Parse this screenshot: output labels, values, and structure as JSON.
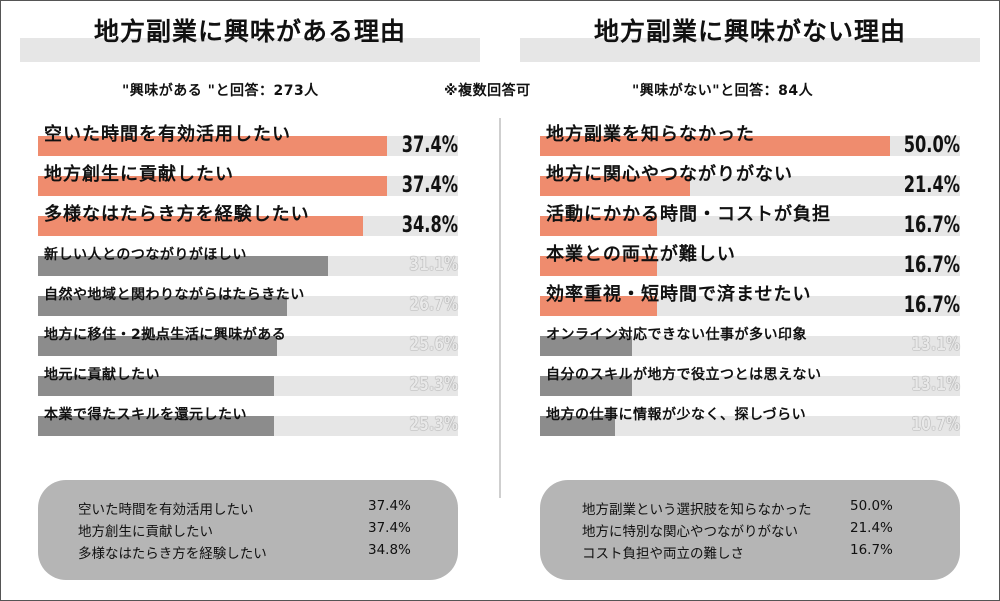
{
  "note": "※複数回答可",
  "colors": {
    "highlight": "#ef8c6e",
    "normal": "#8c8c8c",
    "track": "#e6e6e6",
    "pct_highlight": "#111111",
    "pct_normal": "#e9e9e9"
  },
  "chart_data": [
    {
      "type": "bar",
      "orientation": "horizontal",
      "title": "地方副業に興味がある理由",
      "respondents": "\"興味がある \"と回答：273人",
      "unit": "%",
      "xlim": [
        0,
        45
      ],
      "categories": [
        "空いた時間を有効活用したい",
        "地方創生に貢献したい",
        "多様なはたらき方を経験したい",
        "新しい人とのつながりがほしい",
        "自然や地域と関わりながらはたらきたい",
        "地方に移住・2拠点生活に興味がある",
        "地元に貢献したい",
        "本業で得たスキルを還元したい"
      ],
      "values": [
        37.4,
        37.4,
        34.8,
        31.1,
        26.7,
        25.6,
        25.3,
        25.3
      ],
      "labels": [
        "37.4%",
        "37.4%",
        "34.8%",
        "31.1%",
        "26.7%",
        "25.6%",
        "25.3%",
        "25.3%"
      ],
      "highlighted": [
        true,
        true,
        true,
        false,
        false,
        false,
        false,
        false
      ],
      "summary": [
        {
          "label": "空いた時間を有効活用したい",
          "value": "37.4%"
        },
        {
          "label": "地方創生に貢献したい",
          "value": "37.4%"
        },
        {
          "label": "多様なはたらき方を経験したい",
          "value": "34.8%"
        }
      ]
    },
    {
      "type": "bar",
      "orientation": "horizontal",
      "title": "地方副業に興味がない理由",
      "respondents": "\"興味がない\"と回答：84人",
      "unit": "%",
      "xlim": [
        0,
        60
      ],
      "categories": [
        "地方副業を知らなかった",
        "地方に関心やつながりがない",
        "活動にかかる時間・コストが負担",
        "本業との両立が難しい",
        "効率重視・短時間で済ませたい",
        "オンライン対応できない仕事が多い印象",
        "自分のスキルが地方で役立つとは思えない",
        "地方の仕事に情報が少なく、探しづらい"
      ],
      "values": [
        50.0,
        21.4,
        16.7,
        16.7,
        16.7,
        13.1,
        13.1,
        10.7
      ],
      "labels": [
        "50.0%",
        "21.4%",
        "16.7%",
        "16.7%",
        "16.7%",
        "13.1%",
        "13.1%",
        "10.7%"
      ],
      "highlighted": [
        true,
        true,
        true,
        true,
        true,
        false,
        false,
        false
      ],
      "summary": [
        {
          "label": "地方副業という選択肢を知らなかった",
          "value": "50.0%"
        },
        {
          "label": "地方に特別な関心やつながりがない",
          "value": "21.4%"
        },
        {
          "label": "コスト負担や両立の難しさ",
          "value": "16.7%"
        }
      ]
    }
  ]
}
